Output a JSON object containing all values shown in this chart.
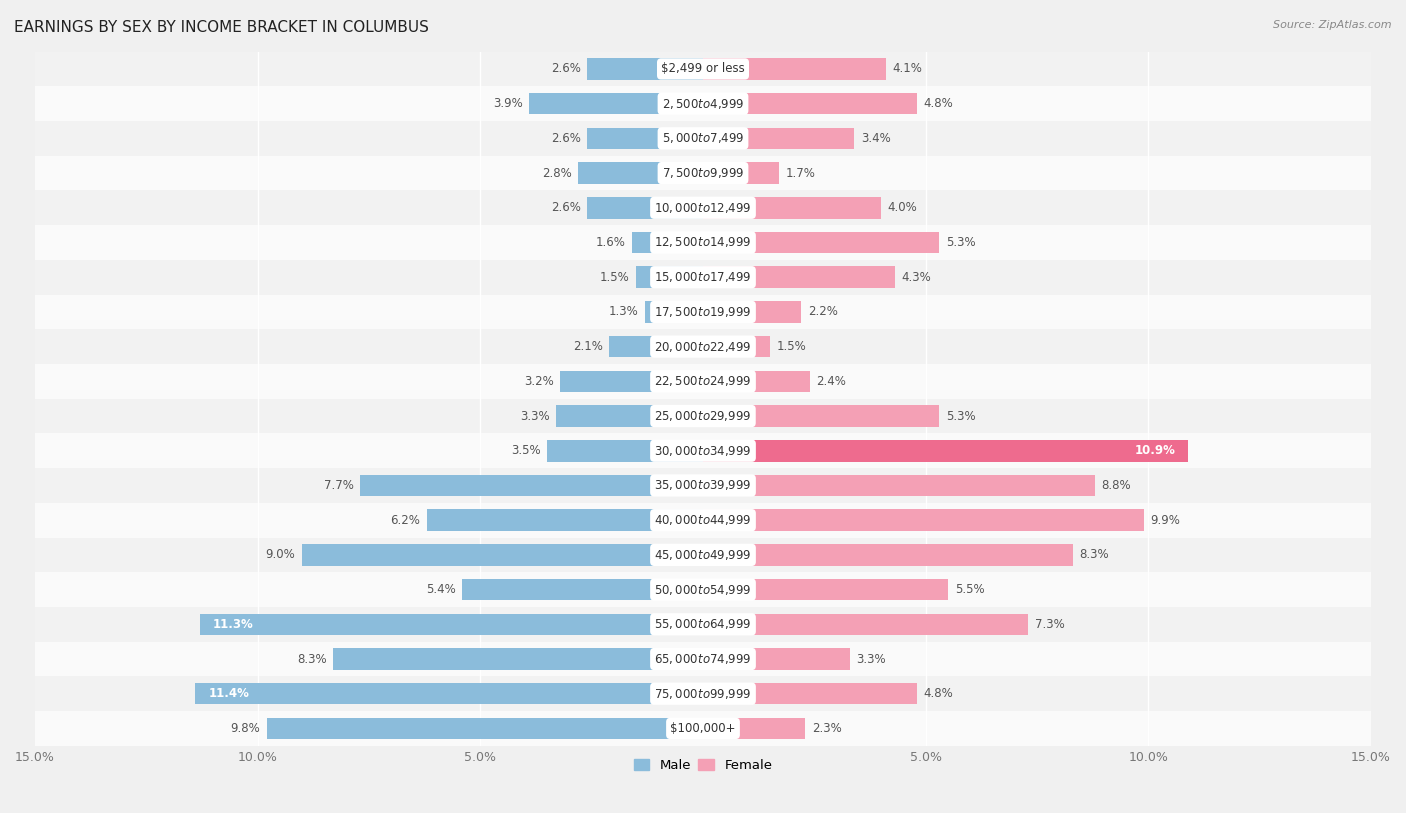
{
  "title": "EARNINGS BY SEX BY INCOME BRACKET IN COLUMBUS",
  "source": "Source: ZipAtlas.com",
  "categories": [
    "$2,499 or less",
    "$2,500 to $4,999",
    "$5,000 to $7,499",
    "$7,500 to $9,999",
    "$10,000 to $12,499",
    "$12,500 to $14,999",
    "$15,000 to $17,499",
    "$17,500 to $19,999",
    "$20,000 to $22,499",
    "$22,500 to $24,999",
    "$25,000 to $29,999",
    "$30,000 to $34,999",
    "$35,000 to $39,999",
    "$40,000 to $44,999",
    "$45,000 to $49,999",
    "$50,000 to $54,999",
    "$55,000 to $64,999",
    "$65,000 to $74,999",
    "$75,000 to $99,999",
    "$100,000+"
  ],
  "male": [
    2.6,
    3.9,
    2.6,
    2.8,
    2.6,
    1.6,
    1.5,
    1.3,
    2.1,
    3.2,
    3.3,
    3.5,
    7.7,
    6.2,
    9.0,
    5.4,
    11.3,
    8.3,
    11.4,
    9.8
  ],
  "female": [
    4.1,
    4.8,
    3.4,
    1.7,
    4.0,
    5.3,
    4.3,
    2.2,
    1.5,
    2.4,
    5.3,
    10.9,
    8.8,
    9.9,
    8.3,
    5.5,
    7.3,
    3.3,
    4.8,
    2.3
  ],
  "male_color": "#8BBCDB",
  "female_color": "#F4A0B5",
  "female_color_bright": "#EE6B8E",
  "xlim": 15.0,
  "row_bg_even": "#f2f2f2",
  "row_bg_odd": "#fafafa",
  "title_fontsize": 11,
  "tick_fontsize": 9,
  "label_fontsize": 8.5,
  "cat_fontsize": 8.5,
  "bar_height": 0.62,
  "legend_male": "Male",
  "legend_female": "Female"
}
